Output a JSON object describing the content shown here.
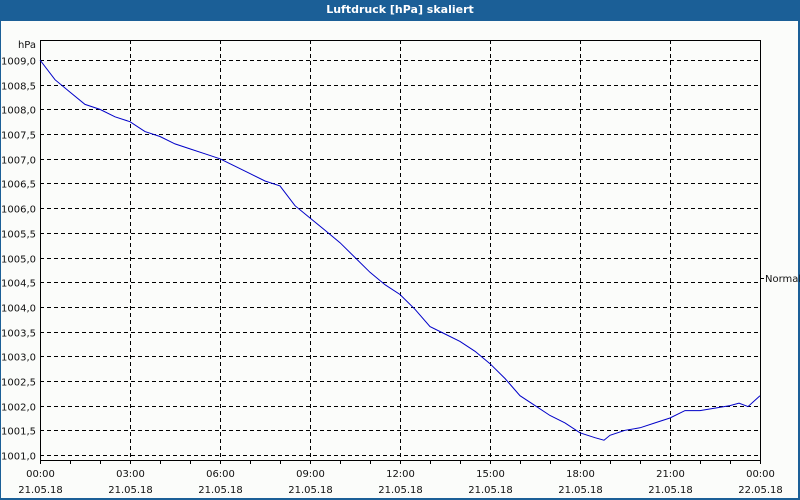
{
  "window": {
    "title": "Luftdruck [hPa] skaliert"
  },
  "colors": {
    "titlebar": "#1b5f97",
    "background": "#fbfcfa",
    "series": "#0000c8",
    "grid": "#000000"
  },
  "chart_data": {
    "type": "line",
    "title": "Luftdruck [hPa] skaliert",
    "xlabel": "",
    "ylabel": "hPa",
    "ylim": [
      1001.0,
      1009.0
    ],
    "grid": true,
    "legend_position": "right",
    "y_ticks": [
      "1009,0",
      "1008,5",
      "1008,0",
      "1007,5",
      "1007,0",
      "1006,5",
      "1006,0",
      "1005,5",
      "1005,0",
      "1004,5",
      "1004,0",
      "1003,5",
      "1003,0",
      "1002,5",
      "1002,0",
      "1001,5",
      "1001,0"
    ],
    "x_ticks": [
      {
        "time": "00:00",
        "date": "21.05.18"
      },
      {
        "time": "03:00",
        "date": "21.05.18"
      },
      {
        "time": "06:00",
        "date": "21.05.18"
      },
      {
        "time": "09:00",
        "date": "21.05.18"
      },
      {
        "time": "12:00",
        "date": "21.05.18"
      },
      {
        "time": "15:00",
        "date": "21.05.18"
      },
      {
        "time": "18:00",
        "date": "21.05.18"
      },
      {
        "time": "21:00",
        "date": "21.05.18"
      },
      {
        "time": "00:00",
        "date": "22.05.18"
      }
    ],
    "series": [
      {
        "name": "Normal",
        "x_hours": [
          0,
          0.5,
          1,
          1.5,
          2,
          2.5,
          3,
          3.5,
          4,
          4.5,
          5,
          5.5,
          6,
          6.5,
          7,
          7.5,
          8,
          8.5,
          9,
          9.5,
          10,
          10.5,
          11,
          11.5,
          12,
          12.5,
          13,
          13.5,
          14,
          14.5,
          15,
          15.5,
          16,
          16.5,
          17,
          17.5,
          18,
          18.5,
          18.8,
          19,
          19.5,
          20,
          20.5,
          21,
          21.5,
          22,
          22.5,
          23,
          23.3,
          23.6,
          24
        ],
        "values": [
          1009.0,
          1008.6,
          1008.35,
          1008.1,
          1008.0,
          1007.85,
          1007.75,
          1007.55,
          1007.45,
          1007.3,
          1007.2,
          1007.1,
          1007.0,
          1006.85,
          1006.7,
          1006.55,
          1006.45,
          1006.05,
          1005.8,
          1005.55,
          1005.3,
          1005.0,
          1004.7,
          1004.45,
          1004.25,
          1003.95,
          1003.6,
          1003.45,
          1003.3,
          1003.1,
          1002.85,
          1002.55,
          1002.2,
          1002.0,
          1001.8,
          1001.65,
          1001.45,
          1001.35,
          1001.3,
          1001.4,
          1001.5,
          1001.55,
          1001.65,
          1001.75,
          1001.9,
          1001.9,
          1001.95,
          1002.0,
          1002.05,
          1001.98,
          1002.2
        ]
      }
    ]
  }
}
